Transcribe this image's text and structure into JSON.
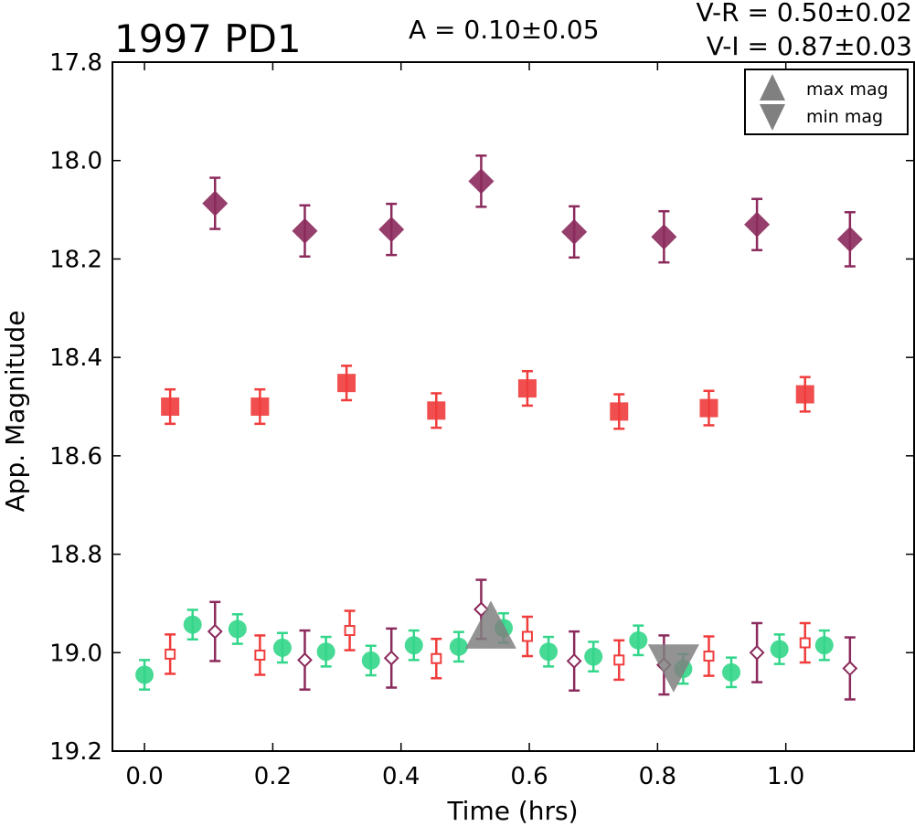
{
  "chart_data": {
    "type": "scatter",
    "title": "1997 PD1",
    "amplitude_text": "A  = 0.10±0.05",
    "color_text_1": "V-R = 0.50±0.02",
    "color_text_2": "V-I  = 0.87±0.03",
    "xlabel": "Time (hrs)",
    "ylabel": "App. Magnitude",
    "xlim": [
      -0.05,
      1.2
    ],
    "ylim": [
      19.2,
      17.8
    ],
    "y_inverted": true,
    "xticks": [
      "0.0",
      "0.2",
      "0.4",
      "0.6",
      "0.8",
      "1.0"
    ],
    "xtick_values": [
      0.0,
      0.2,
      0.4,
      0.6,
      0.8,
      1.0
    ],
    "yticks": [
      "17.8",
      "18.0",
      "18.2",
      "18.4",
      "18.6",
      "18.8",
      "19.0",
      "19.2"
    ],
    "ytick_values": [
      17.8,
      18.0,
      18.2,
      18.4,
      18.6,
      18.8,
      19.0,
      19.2
    ],
    "grid": false,
    "legend": {
      "position": "top-right",
      "entries": [
        {
          "label": "max mag",
          "marker": "triangle-up",
          "color": "#808080"
        },
        {
          "label": "min mag",
          "marker": "triangle-down",
          "color": "#808080"
        }
      ]
    },
    "series": [
      {
        "marker": "diamond",
        "color": "#8b2a5c",
        "filled": true,
        "x": [
          0.11,
          0.25,
          0.385,
          0.525,
          0.67,
          0.81,
          0.955,
          1.1
        ],
        "y": [
          18.087,
          18.143,
          18.14,
          18.042,
          18.145,
          18.155,
          18.13,
          18.16
        ],
        "err": [
          0.052,
          0.052,
          0.052,
          0.052,
          0.052,
          0.052,
          0.052,
          0.055
        ]
      },
      {
        "marker": "square",
        "color": "#f03c3c",
        "filled": true,
        "x": [
          0.04,
          0.18,
          0.315,
          0.455,
          0.597,
          0.74,
          0.88,
          1.03
        ],
        "y": [
          18.5,
          18.5,
          18.452,
          18.508,
          18.463,
          18.51,
          18.503,
          18.475
        ],
        "err": [
          0.035,
          0.035,
          0.035,
          0.035,
          0.035,
          0.035,
          0.035,
          0.035
        ]
      },
      {
        "marker": "circle",
        "color": "#33d68a",
        "filled": true,
        "x": [
          0.0,
          0.075,
          0.145,
          0.215,
          0.283,
          0.353,
          0.42,
          0.49,
          0.56,
          0.63,
          0.7,
          0.77,
          0.84,
          0.915,
          0.99,
          1.06
        ],
        "y": [
          19.045,
          18.943,
          18.952,
          18.99,
          18.998,
          19.016,
          18.985,
          18.988,
          18.95,
          18.998,
          19.008,
          18.975,
          19.033,
          19.04,
          18.993,
          18.985
        ],
        "err": [
          0.03,
          0.03,
          0.03,
          0.03,
          0.03,
          0.03,
          0.03,
          0.03,
          0.03,
          0.03,
          0.03,
          0.03,
          0.03,
          0.03,
          0.03,
          0.03
        ]
      },
      {
        "marker": "square",
        "color": "#f03c3c",
        "filled": false,
        "x": [
          0.04,
          0.18,
          0.32,
          0.455,
          0.597,
          0.74,
          0.88,
          1.03
        ],
        "y": [
          19.003,
          19.005,
          18.955,
          19.012,
          18.967,
          19.015,
          19.007,
          18.98
        ],
        "err": [
          0.04,
          0.04,
          0.04,
          0.04,
          0.04,
          0.04,
          0.04,
          0.04
        ]
      },
      {
        "marker": "diamond",
        "color": "#8b2a5c",
        "filled": false,
        "x": [
          0.11,
          0.25,
          0.385,
          0.525,
          0.67,
          0.81,
          0.955,
          1.1
        ],
        "y": [
          18.957,
          19.015,
          19.011,
          18.912,
          19.017,
          19.025,
          19.0,
          19.032
        ],
        "err": [
          0.06,
          0.06,
          0.06,
          0.06,
          0.06,
          0.06,
          0.06,
          0.063
        ]
      }
    ],
    "markers": [
      {
        "type": "max mag",
        "marker": "triangle-up",
        "x": 0.54,
        "y": 18.95,
        "color": "#808080"
      },
      {
        "type": "min mag",
        "marker": "triangle-down",
        "x": 0.825,
        "y": 19.025,
        "color": "#808080"
      }
    ]
  }
}
